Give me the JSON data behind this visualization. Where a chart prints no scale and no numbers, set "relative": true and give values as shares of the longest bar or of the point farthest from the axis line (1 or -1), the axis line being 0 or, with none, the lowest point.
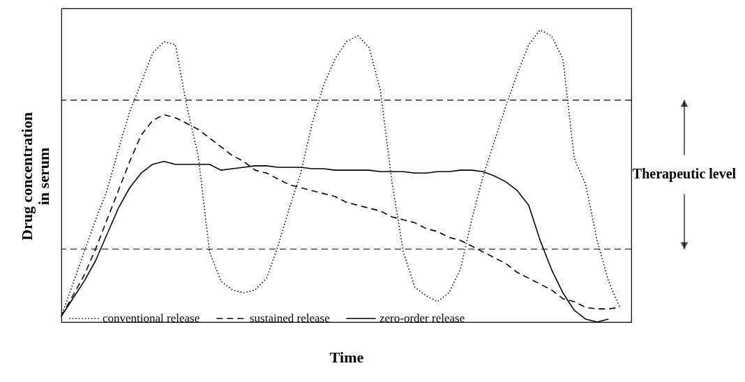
{
  "chart_data": {
    "type": "line",
    "relative": true,
    "xlabel": "Time",
    "ylabel": "Drug concentration\nin serum",
    "tick_labels": false,
    "grid": false,
    "legend": "bottom",
    "marker": "none",
    "categories": [
      null,
      null,
      null,
      null,
      null,
      null,
      null,
      null,
      null,
      null,
      null,
      null,
      null,
      null,
      null,
      null,
      null,
      null,
      null,
      null,
      null,
      null,
      null,
      null,
      null,
      null,
      null,
      null,
      null,
      null,
      null,
      null,
      null,
      null,
      null,
      null,
      null,
      null,
      null,
      null,
      null,
      null,
      null,
      null,
      null,
      null,
      null,
      null,
      null,
      null
    ],
    "annotations": [
      "Therapeutic level"
    ],
    "ref_lines": [
      {
        "axis": "y",
        "value": 0.76,
        "line_style": "dashed",
        "color": "#000000"
      },
      {
        "axis": "y",
        "value": 0.25,
        "line_style": "dashed",
        "color": "#000000"
      }
    ],
    "series": [
      {
        "name": "conventional release",
        "color": "#000000",
        "line_style": "dotted",
        "values": [
          0.02,
          0.13,
          0.24,
          0.35,
          0.45,
          0.59,
          0.72,
          0.82,
          0.92,
          0.96,
          0.95,
          0.74,
          0.57,
          0.24,
          0.14,
          0.11,
          0.1,
          0.11,
          0.15,
          0.26,
          0.39,
          0.51,
          0.68,
          0.81,
          0.9,
          0.96,
          0.98,
          0.94,
          0.79,
          0.48,
          0.24,
          0.12,
          0.09,
          0.07,
          0.1,
          0.18,
          0.35,
          0.5,
          0.62,
          0.74,
          0.85,
          0.95,
          1.0,
          0.98,
          0.9,
          0.56,
          0.47,
          0.28,
          0.14,
          0.05
        ]
      },
      {
        "name": "sustained release",
        "color": "#000000",
        "line_style": "dashed",
        "values": [
          0.02,
          0.09,
          0.16,
          0.25,
          0.35,
          0.45,
          0.55,
          0.64,
          0.69,
          0.71,
          0.7,
          0.68,
          0.66,
          0.63,
          0.6,
          0.57,
          0.55,
          0.52,
          0.51,
          0.49,
          0.47,
          0.46,
          0.45,
          0.44,
          0.43,
          0.41,
          0.4,
          0.39,
          0.38,
          0.36,
          0.35,
          0.34,
          0.32,
          0.31,
          0.29,
          0.28,
          0.26,
          0.24,
          0.22,
          0.2,
          0.17,
          0.15,
          0.13,
          0.11,
          0.08,
          0.07,
          0.05,
          0.045,
          0.045,
          0.05
        ]
      },
      {
        "name": "zero-order release",
        "color": "#000000",
        "line_style": "solid",
        "values": [
          0.02,
          0.08,
          0.14,
          0.21,
          0.3,
          0.39,
          0.46,
          0.51,
          0.54,
          0.55,
          0.54,
          0.54,
          0.54,
          0.54,
          0.52,
          0.525,
          0.53,
          0.535,
          0.535,
          0.53,
          0.53,
          0.53,
          0.525,
          0.525,
          0.52,
          0.52,
          0.52,
          0.52,
          0.515,
          0.515,
          0.515,
          0.51,
          0.51,
          0.515,
          0.515,
          0.52,
          0.52,
          0.515,
          0.5,
          0.48,
          0.45,
          0.4,
          0.28,
          0.18,
          0.1,
          0.04,
          0.01,
          0.0,
          0.01,
          null
        ]
      }
    ]
  }
}
